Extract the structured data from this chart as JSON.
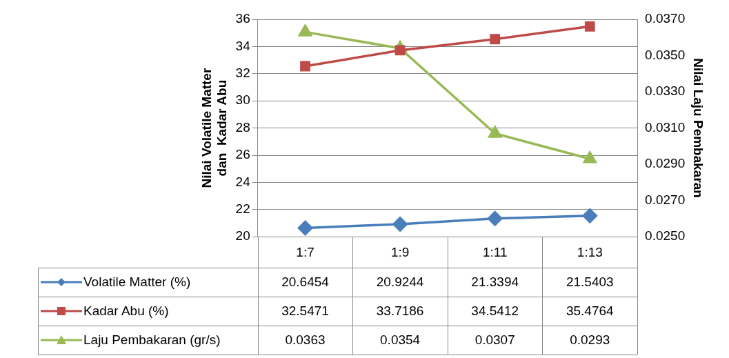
{
  "chart_data": {
    "type": "line",
    "ylabel": "Nilai Volatile Matter\ndan  Kadar Abu",
    "y2label": "Nilai Laju Pembakaran",
    "categories": [
      "1:7",
      "1:9",
      "1:11",
      "1:13"
    ],
    "series": [
      {
        "name": "Volatile Matter (%)",
        "color": "#4a7ebb",
        "marker": "diamond",
        "values": [
          20.6454,
          20.9244,
          21.3394,
          21.5403
        ]
      },
      {
        "name": "Kadar Abu (%)",
        "color": "#be4b48",
        "marker": "square",
        "values": [
          32.5471,
          33.7186,
          34.5412,
          35.4764
        ]
      },
      {
        "name": "Laju Pembakaran (gr/s)",
        "color": "#98b954",
        "marker": "triangle",
        "axis": "y2",
        "values": [
          0.0363,
          0.0354,
          0.0307,
          0.0293
        ]
      }
    ],
    "ylim": [
      20,
      36
    ],
    "yticks": [
      20,
      22,
      24,
      26,
      28,
      30,
      32,
      34,
      36
    ],
    "y2lim": [
      0.025,
      0.037
    ],
    "y2ticks": [
      {
        "value": 0.025,
        "label": "0.0250"
      },
      {
        "value": 0.027,
        "label": "0.0270"
      },
      {
        "value": 0.029,
        "label": "0.0290"
      },
      {
        "value": 0.031,
        "label": "0.0310"
      },
      {
        "value": 0.033,
        "label": "0.0330"
      },
      {
        "value": 0.035,
        "label": "0.0350"
      },
      {
        "value": 0.037,
        "label": "0.0370"
      }
    ],
    "grid": "y",
    "legend": "bottom",
    "data_labels": true,
    "line_style": "solid"
  }
}
